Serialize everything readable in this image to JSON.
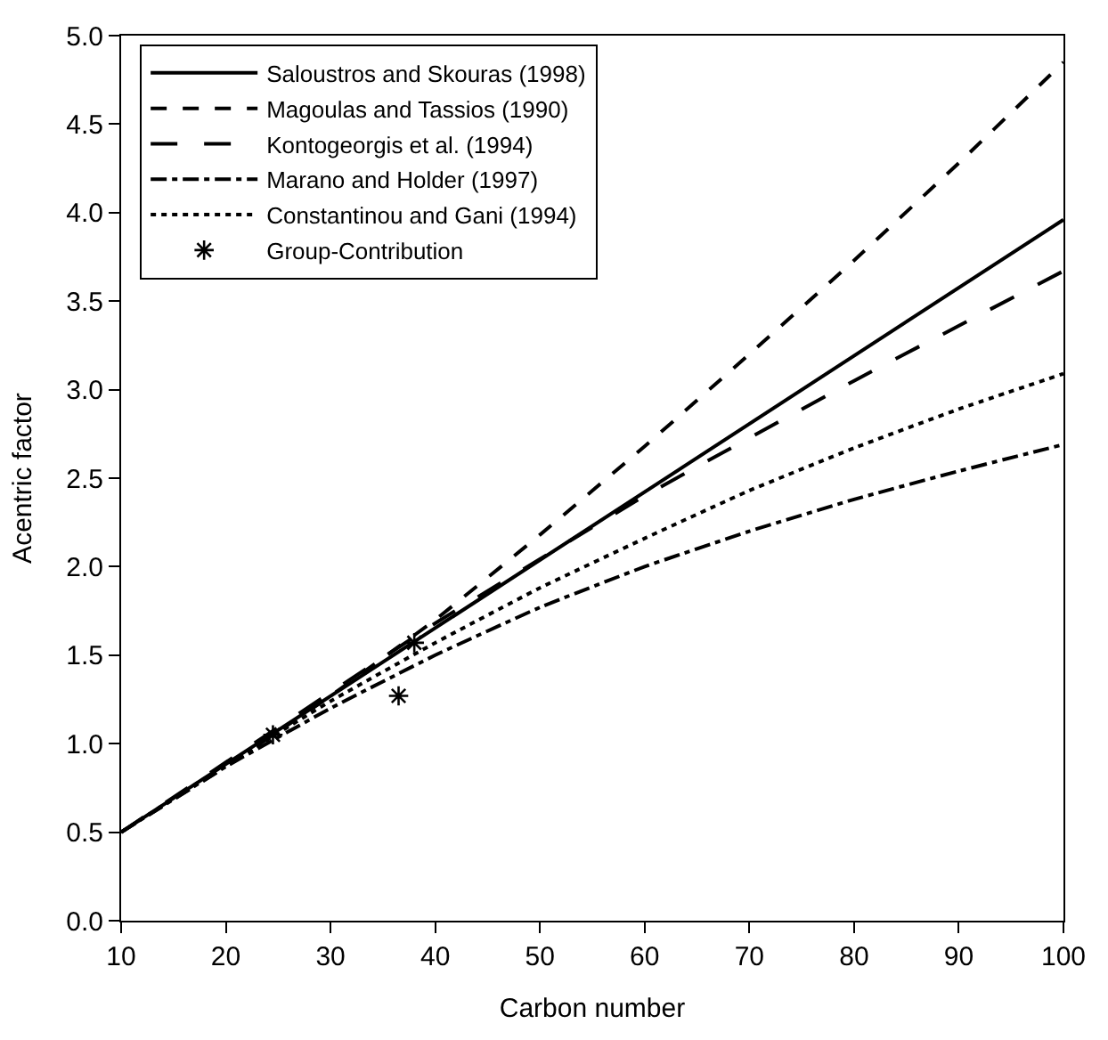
{
  "chart_data": {
    "type": "line",
    "xlabel": "Carbon number",
    "ylabel": "Acentric factor",
    "xlim": [
      10,
      100
    ],
    "ylim": [
      0,
      5
    ],
    "xticks": [
      10,
      20,
      30,
      40,
      50,
      60,
      70,
      80,
      90,
      100
    ],
    "yticks": [
      {
        "value": 0,
        "label": "0.0"
      },
      {
        "value": 0.5,
        "label": "0.5"
      },
      {
        "value": 1,
        "label": "1.0"
      },
      {
        "value": 1.5,
        "label": "1.5"
      },
      {
        "value": 2,
        "label": "2.0"
      },
      {
        "value": 2.5,
        "label": "2.5"
      },
      {
        "value": 3,
        "label": "3.0"
      },
      {
        "value": 3.5,
        "label": "3.5"
      },
      {
        "value": 4,
        "label": "4.0"
      },
      {
        "value": 4.5,
        "label": "4.5"
      },
      {
        "value": 5,
        "label": "5.0"
      }
    ],
    "legend": "top left",
    "marker": "none",
    "series": [
      {
        "name": "Saloustros and Skouras (1998)",
        "color": "#000000",
        "line_style": "solid",
        "x": [
          10,
          100
        ],
        "values": [
          0.5,
          3.96
        ]
      },
      {
        "name": "Magoulas and Tassios (1990)",
        "color": "#000000",
        "line_style": "dashed",
        "x": [
          10,
          20,
          30,
          40,
          50,
          60,
          70,
          80,
          90,
          100
        ],
        "values": [
          0.5,
          0.87,
          1.27,
          1.7,
          2.18,
          2.68,
          3.2,
          3.73,
          4.28,
          4.85
        ]
      },
      {
        "name": "Kontogeorgis et al. (1994)",
        "color": "#000000",
        "line_style": "longdash",
        "x": [
          10,
          40,
          60,
          80,
          100
        ],
        "values": [
          0.5,
          1.68,
          2.4,
          3.05,
          3.67
        ]
      },
      {
        "name": "Marano and Holder (1997)",
        "color": "#000000",
        "line_style": "dashdot",
        "x": [
          10,
          20,
          30,
          40,
          50,
          60,
          70,
          80,
          90,
          100
        ],
        "values": [
          0.5,
          0.87,
          1.2,
          1.5,
          1.77,
          2.0,
          2.2,
          2.38,
          2.54,
          2.69
        ]
      },
      {
        "name": "Constantinou and Gani (1994)",
        "color": "#000000",
        "line_style": "dotted",
        "x": [
          10,
          20,
          30,
          40,
          50,
          60,
          70,
          80,
          90,
          100
        ],
        "values": [
          0.5,
          0.88,
          1.24,
          1.57,
          1.88,
          2.16,
          2.43,
          2.67,
          2.89,
          3.09
        ]
      },
      {
        "name": "Group-Contribution",
        "color": "#000000",
        "type": "scatter",
        "marker": "cross",
        "x": [
          24.5,
          36.5,
          38
        ],
        "values": [
          1.05,
          1.27,
          1.57
        ]
      }
    ]
  }
}
